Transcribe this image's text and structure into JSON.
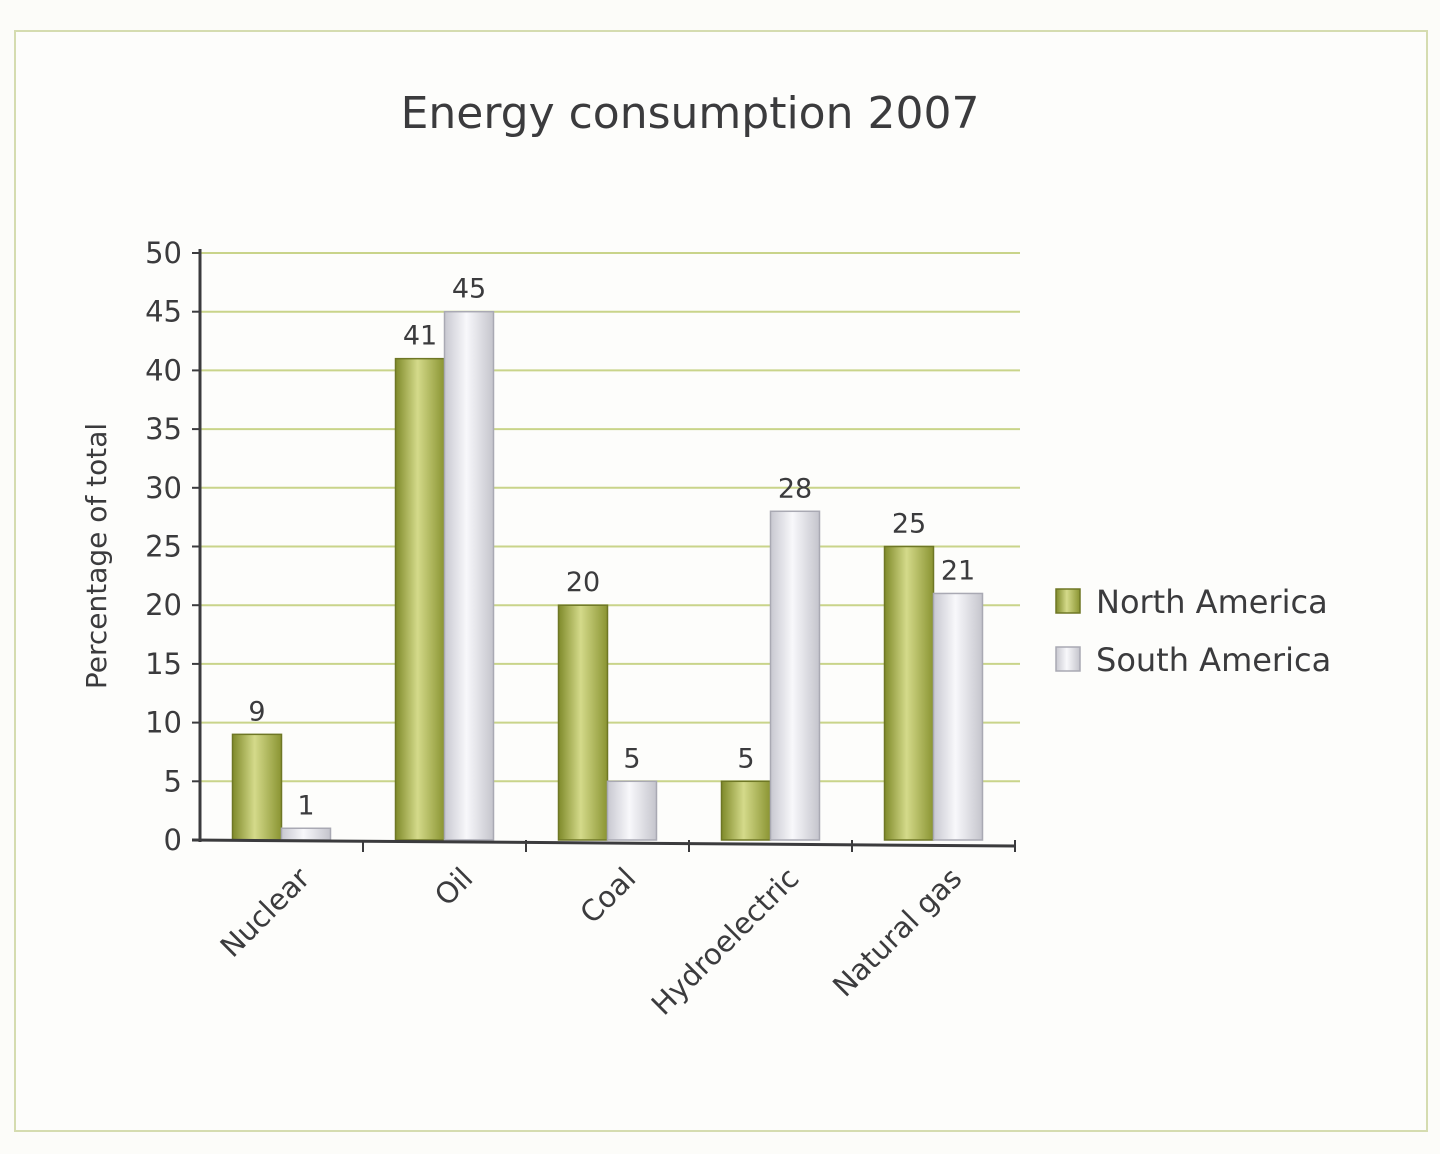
{
  "chart_data": {
    "type": "bar",
    "title": "Energy consumption 2007",
    "xlabel": "",
    "ylabel": "Percentage of total",
    "ylim": [
      0,
      50
    ],
    "yticks": [
      0,
      5,
      10,
      15,
      20,
      25,
      30,
      35,
      40,
      45,
      50
    ],
    "grid": true,
    "legend_position": "right",
    "categories": [
      "Nuclear",
      "Oil",
      "Coal",
      "Hydroelectric",
      "Natural gas"
    ],
    "series": [
      {
        "name": "North America",
        "color": "#a4ad48",
        "values": [
          9,
          41,
          20,
          5,
          25
        ]
      },
      {
        "name": "South America",
        "color": "#e4e4ea",
        "values": [
          1,
          45,
          5,
          28,
          21
        ]
      }
    ],
    "data_labels": true
  },
  "colors": {
    "grid": "#c9d48a",
    "axis": "#3b3b3d",
    "frame": "#d5dcb0"
  }
}
